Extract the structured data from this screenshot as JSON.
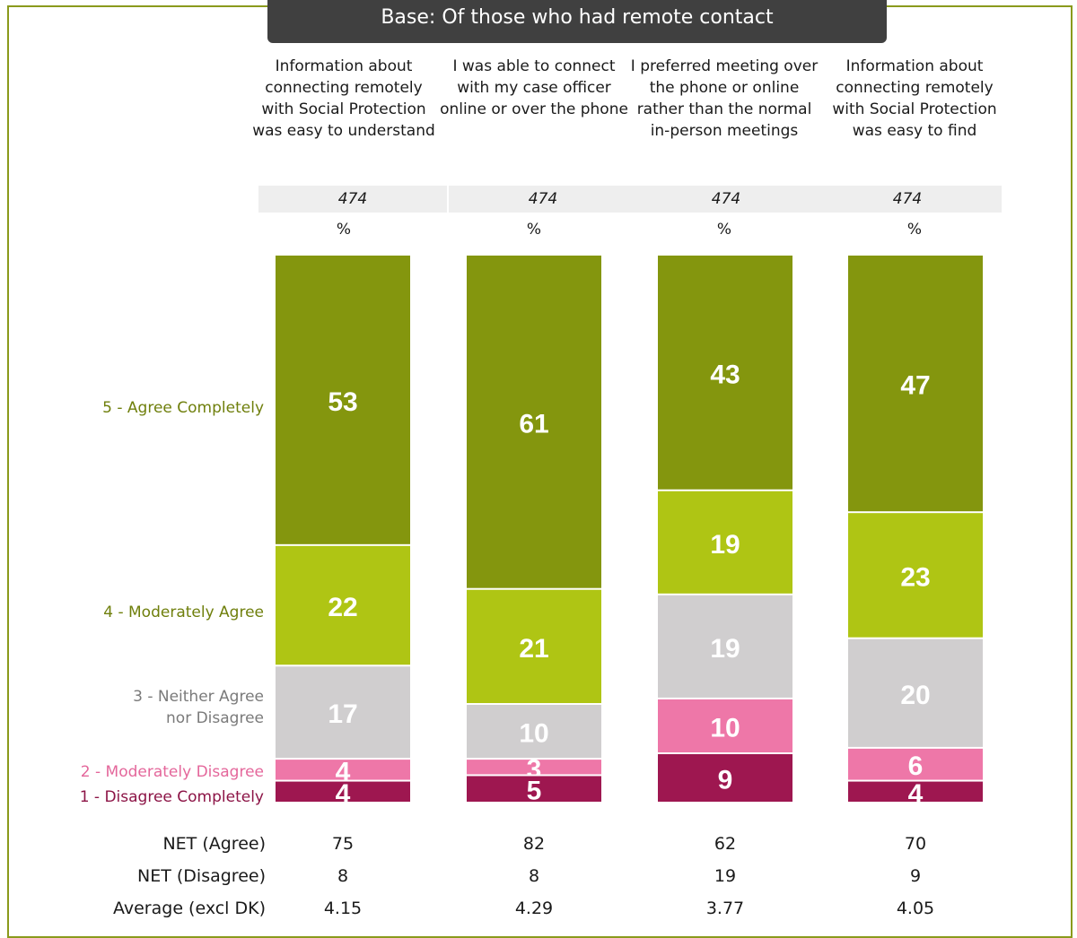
{
  "base_label": "Base: Of those who had remote contact",
  "columns": [
    {
      "header": "Information about connecting remotely with Social Protection was easy to understand",
      "base": "474",
      "unit": "%"
    },
    {
      "header": "I was able to connect with my case officer online or over the phone",
      "base": "474",
      "unit": "%"
    },
    {
      "header": "I preferred meeting over the phone or online rather than the normal in-person meetings",
      "base": "474",
      "unit": "%"
    },
    {
      "header": "Information about connecting remotely with Social Protection was easy to find",
      "base": "474",
      "unit": "%"
    }
  ],
  "colors": {
    "agree_completely": "#84960e",
    "moderately_agree": "#afc514",
    "neither": "#d0cecf",
    "moderately_disagree": "#ee77a8",
    "disagree_completely": "#9e1750"
  },
  "chart_data": {
    "type": "bar",
    "stacked": true,
    "unit": "%",
    "categories": [
      "Information about connecting remotely with Social Protection was easy to understand",
      "I was able to connect with my case officer online or over the phone",
      "I preferred meeting over the phone or online rather than the normal in-person meetings",
      "Information about connecting remotely with Social Protection was easy to find"
    ],
    "series": [
      {
        "name": "5 - Agree Completely",
        "values": [
          53,
          61,
          43,
          47
        ],
        "color": "#84960e"
      },
      {
        "name": "4 - Moderately Agree",
        "values": [
          22,
          21,
          19,
          23
        ],
        "color": "#afc514"
      },
      {
        "name": "3 - Neither Agree nor Disagree",
        "values": [
          17,
          10,
          19,
          20
        ],
        "color": "#d0cecf"
      },
      {
        "name": "2 - Moderately Disagree",
        "values": [
          4,
          3,
          10,
          6
        ],
        "color": "#ee77a8"
      },
      {
        "name": "1 - Disagree Completely",
        "values": [
          4,
          5,
          9,
          4
        ],
        "color": "#9e1750"
      }
    ]
  },
  "stats": [
    {
      "label": "NET (Agree)",
      "values": [
        "75",
        "82",
        "62",
        "70"
      ]
    },
    {
      "label": "NET (Disagree)",
      "values": [
        "8",
        "8",
        "19",
        "9"
      ]
    },
    {
      "label": "Average (excl DK)",
      "values": [
        "4.15",
        "4.29",
        "3.77",
        "4.05"
      ]
    }
  ]
}
